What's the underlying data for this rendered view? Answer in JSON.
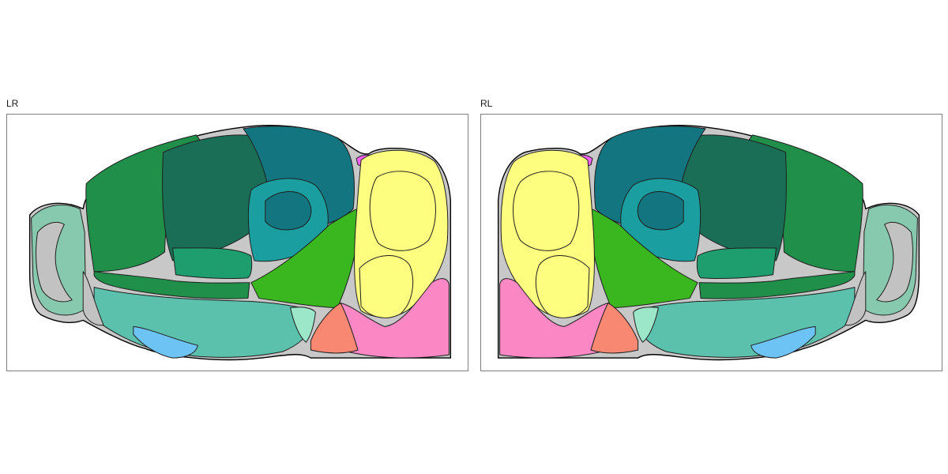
{
  "panels": [
    {
      "id": "lr",
      "label": "LR"
    },
    {
      "id": "rl",
      "label": "RL"
    }
  ],
  "region_colors": {
    "isocortex_dark": "#1a6e55",
    "isocortex_mid": "#1f8f4a",
    "isocortex_light": "#1e9e6e",
    "hippocampal_dark": "#127580",
    "hippocampal": "#1b9ea0",
    "olfactory": "#87c9ae",
    "cortical_subplate": "#5bc1ac",
    "striatum_light": "#9ce6c9",
    "thalamus": "#3ab71f",
    "cerebellum": "#fdfd7f",
    "medulla": "#fb88c4",
    "pons": "#f98872",
    "midbrain": "#f460f4",
    "ventricle": "#c2c2c2",
    "amygdala": "#6ec3f5"
  }
}
